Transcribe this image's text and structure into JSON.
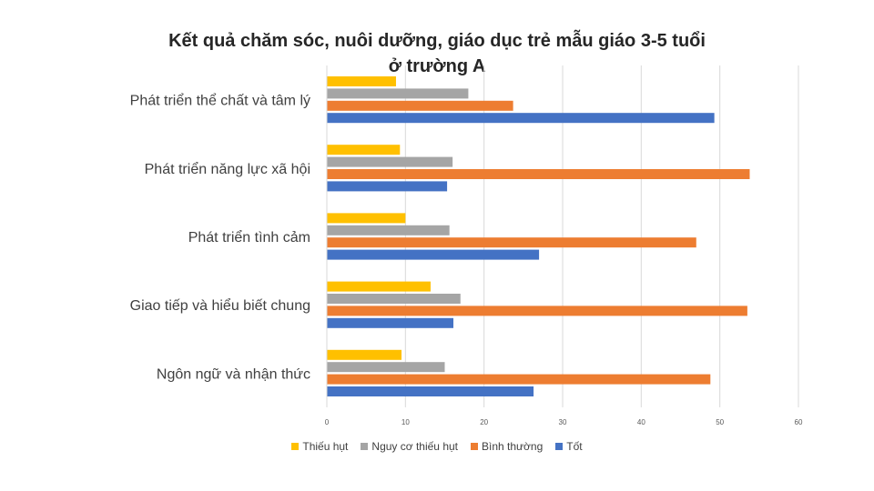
{
  "chart_data": {
    "type": "bar",
    "orientation": "horizontal",
    "title_lines": [
      "Kết quả chăm sóc, nuôi dưỡng, giáo dục trẻ mẫu giáo 3-5 tuổi",
      "ở trường A"
    ],
    "categories": [
      "Ngôn ngữ và nhận thức",
      "Giao tiếp và hiểu biết chung",
      "Phát triển tình cảm",
      "Phát triển năng lực xã hội",
      "Phát triển thể chất và tâm lý"
    ],
    "series": [
      {
        "name": "Thiếu hụt",
        "color": "#FFC000",
        "values": [
          9.5,
          13.2,
          10,
          9.3,
          8.8
        ]
      },
      {
        "name": "Nguy cơ thiếu hụt",
        "color": "#A5A5A5",
        "values": [
          15,
          17,
          15.6,
          16,
          18
        ]
      },
      {
        "name": "Bình thường",
        "color": "#ED7D31",
        "values": [
          48.8,
          53.5,
          47,
          53.8,
          23.7
        ]
      },
      {
        "name": "Tốt",
        "color": "#4472C4",
        "values": [
          26.3,
          16.1,
          27,
          15.3,
          49.3
        ]
      }
    ],
    "xticks": [
      "0",
      "10",
      "20",
      "30",
      "40",
      "50",
      "60"
    ],
    "xlim": [
      0,
      60
    ],
    "grid": true,
    "legend_position": "bottom"
  }
}
